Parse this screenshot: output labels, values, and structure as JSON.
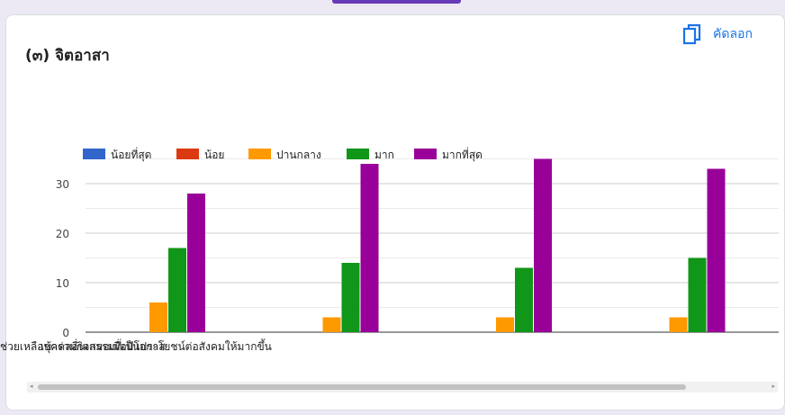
{
  "question": {
    "title": "(๓) จิตอาสา"
  },
  "copy_button": {
    "label": "คัดลอก",
    "icon": "copy-icon"
  },
  "colors": {
    "accent": "#673ab7",
    "link": "#1a73e8"
  },
  "chart_data": {
    "type": "bar",
    "categories": [
      "เข้าร่วมกิจกรรมที่เป็นประโยชน์ต่อสังคมให้มากขึ้น",
      "",
      "ช่วยเหลือบุคคลอื่นเสมอเมื่อมีโอกาส",
      ""
    ],
    "series": [
      {
        "name": "น้อยที่สุด",
        "color": "#3366cc",
        "values": [
          0,
          0,
          0,
          0
        ]
      },
      {
        "name": "น้อย",
        "color": "#dc3912",
        "values": [
          0,
          0,
          0,
          0
        ]
      },
      {
        "name": "ปานกลาง",
        "color": "#ff9900",
        "values": [
          6,
          3,
          3,
          3
        ]
      },
      {
        "name": "มาก",
        "color": "#109618",
        "values": [
          17,
          14,
          13,
          15
        ]
      },
      {
        "name": "มากที่สุด",
        "color": "#990099",
        "values": [
          28,
          34,
          35,
          33
        ]
      }
    ],
    "yticks": [
      0,
      10,
      20,
      30
    ],
    "ylim": [
      0,
      35
    ],
    "grid": true,
    "legend": "top-left"
  }
}
